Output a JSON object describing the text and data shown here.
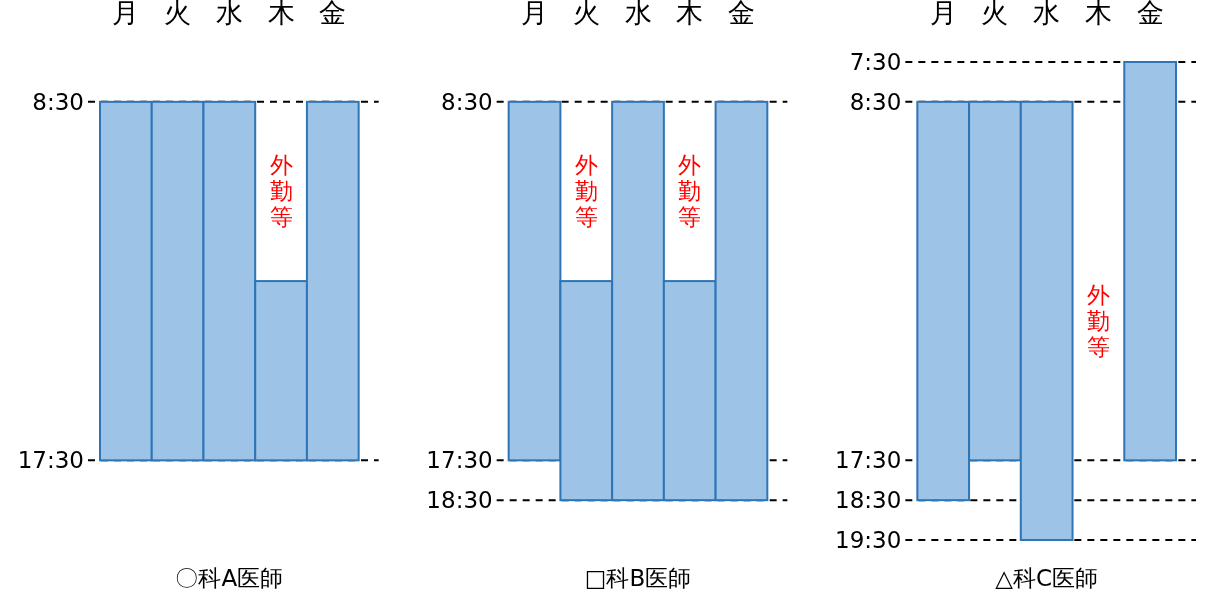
{
  "chart_data": [
    {
      "type": "bar",
      "xlabel": "〇科A医師",
      "categories": [
        "月",
        "火",
        "水",
        "木",
        "金"
      ],
      "base": [
        8.5,
        8.5,
        8.5,
        13.0,
        8.5
      ],
      "values": [
        9,
        9,
        9,
        4.5,
        9
      ],
      "color": "#9dc3e6",
      "ylim": [
        17.5,
        8.5
      ],
      "yticks": [
        {
          "value": 8.5,
          "label": "8:30"
        },
        {
          "value": 17.5,
          "label": "17:30"
        }
      ],
      "grid": "y",
      "annotations": [
        "外勤等"
      ]
    },
    {
      "type": "bar",
      "xlabel": "□科B医師",
      "categories": [
        "月",
        "火",
        "水",
        "木",
        "金"
      ],
      "base": [
        8.5,
        13.0,
        8.5,
        13.0,
        8.5
      ],
      "values": [
        9,
        5.5,
        10,
        5.5,
        10
      ],
      "color": "#9dc3e6",
      "ylim": [
        18.5,
        8.5
      ],
      "yticks": [
        {
          "value": 8.5,
          "label": "8:30"
        },
        {
          "value": 17.5,
          "label": "17:30"
        },
        {
          "value": 18.5,
          "label": "18:30"
        }
      ],
      "grid": "y",
      "annotations": [
        "外勤等",
        "外勤等"
      ]
    },
    {
      "type": "bar",
      "xlabel": "△科C医師",
      "categories": [
        "月",
        "火",
        "水",
        "木",
        "金"
      ],
      "base": [
        8.5,
        8.5,
        8.5,
        null,
        7.5
      ],
      "values": [
        10,
        9,
        11,
        null,
        10
      ],
      "color": "#9dc3e6",
      "ylim": [
        19.5,
        7.5
      ],
      "yticks": [
        {
          "value": 7.5,
          "label": "7:30"
        },
        {
          "value": 8.5,
          "label": "8:30"
        },
        {
          "value": 17.5,
          "label": "17:30"
        },
        {
          "value": 18.5,
          "label": "18:30"
        },
        {
          "value": 19.5,
          "label": "19:30"
        }
      ],
      "grid": "y",
      "annotations": [
        "外勤等"
      ]
    }
  ]
}
